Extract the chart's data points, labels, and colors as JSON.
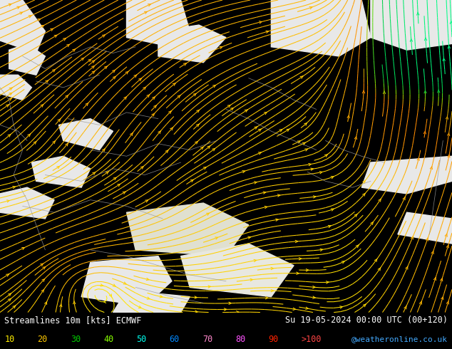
{
  "title_left": "Streamlines 10m [kts] ECMWF",
  "title_right": "Su 19-05-2024 00:00 UTC (00+120)",
  "credit": "@weatheronline.co.uk",
  "fig_width": 6.34,
  "fig_height": 4.9,
  "dpi": 100,
  "land_color": "#c8f0b0",
  "sea_color": "#e8e8e8",
  "bottom_bg": "#000000",
  "legend_values": [
    "10",
    "20",
    "30",
    "40",
    "50",
    "60",
    "70",
    "80",
    "90",
    ">100"
  ],
  "legend_colors": [
    "#ffee00",
    "#ffc800",
    "#00cc00",
    "#88ff00",
    "#00ffee",
    "#0088ff",
    "#ff88ff",
    "#ff44cc",
    "#ff2200",
    "#ff4444"
  ]
}
